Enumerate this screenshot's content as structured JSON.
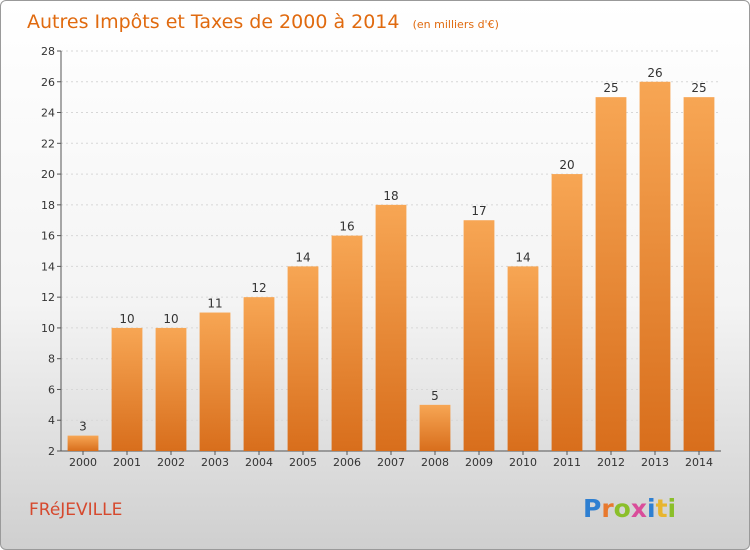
{
  "chart_data": {
    "type": "bar",
    "title": "Autres Impôts et Taxes de 2000 à 2014",
    "subtitle": "(en milliers d'€)",
    "categories": [
      "2000",
      "2001",
      "2002",
      "2003",
      "2004",
      "2005",
      "2006",
      "2007",
      "2008",
      "2009",
      "2010",
      "2011",
      "2012",
      "2013",
      "2014"
    ],
    "values": [
      3,
      10,
      10,
      11,
      12,
      14,
      16,
      18,
      5,
      17,
      14,
      20,
      25,
      26,
      25
    ],
    "xlabel": "",
    "ylabel": "",
    "ylim": [
      2,
      28
    ],
    "yticks": [
      2,
      4,
      6,
      8,
      10,
      12,
      14,
      16,
      18,
      20,
      22,
      24,
      26,
      28
    ],
    "grid": true,
    "legend": "none",
    "bar_color": "#f0913a"
  },
  "footer": {
    "commune": "FRéJEVILLE",
    "logo_text": "Proxiti"
  },
  "colors": {
    "title": "#e06a0f",
    "commune": "#d6492e",
    "logo_letters": [
      "#2e7fd1",
      "#e8792e",
      "#8bbf2a",
      "#d94d9a",
      "#2e7fd1",
      "#e8b52e",
      "#8bbf2a"
    ]
  }
}
